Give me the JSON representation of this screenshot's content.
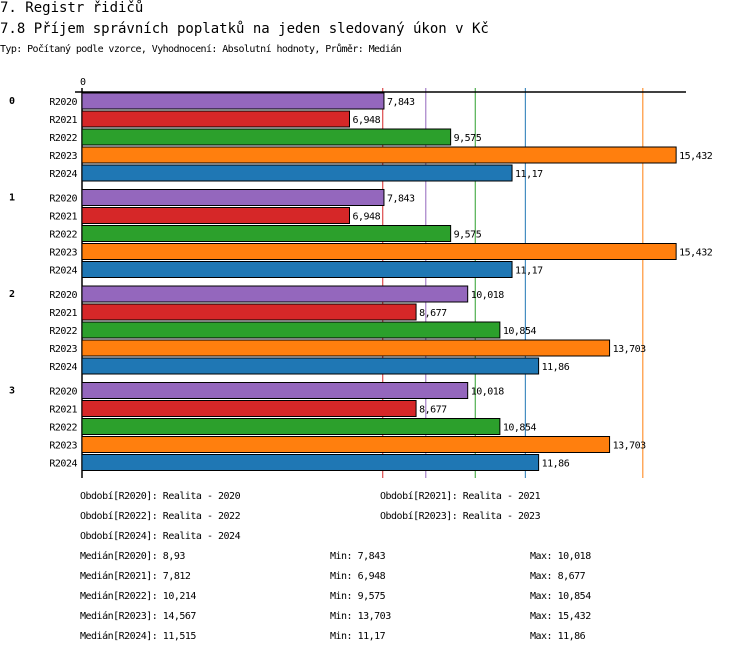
{
  "header": {
    "section": "7. Registr řidičů",
    "title": "7.8 Příjem správních poplatků na jeden sledovaný úkon v Kč",
    "subtitle": "Typ: Počítaný podle vzorce, Vyhodnocení: Absolutní hodnoty, Průměr: Medián"
  },
  "chart_data": {
    "type": "bar",
    "orientation": "horizontal",
    "title": "7.8 Příjem správních poplatků na jeden sledovaný úkon v Kč",
    "x_tick_labels": [
      "0"
    ],
    "groups": [
      "0",
      "1",
      "2",
      "3"
    ],
    "series": [
      {
        "name": "R2020",
        "color": "#9467bd",
        "values": [
          7.843,
          7.843,
          10.018,
          10.018
        ],
        "labels": [
          "7,843",
          "7,843",
          "10,018",
          "10,018"
        ],
        "median": 8.93
      },
      {
        "name": "R2021",
        "color": "#d62728",
        "values": [
          6.948,
          6.948,
          8.677,
          8.677
        ],
        "labels": [
          "6,948",
          "6,948",
          "8,677",
          "8,677"
        ],
        "median": 7.812
      },
      {
        "name": "R2022",
        "color": "#2ca02c",
        "values": [
          9.575,
          9.575,
          10.854,
          10.854
        ],
        "labels": [
          "9,575",
          "9,575",
          "10,854",
          "10,854"
        ],
        "median": 10.214
      },
      {
        "name": "R2023",
        "color": "#ff7f0e",
        "values": [
          15.432,
          15.432,
          13.703,
          13.703
        ],
        "labels": [
          "15,432",
          "15,432",
          "13,703",
          "13,703"
        ],
        "median": 14.567
      },
      {
        "name": "R2024",
        "color": "#1f77b4",
        "values": [
          11.17,
          11.17,
          11.86,
          11.86
        ],
        "labels": [
          "11,17",
          "11,17",
          "11,86",
          "11,86"
        ],
        "median": 11.515
      }
    ],
    "xlim": [
      0,
      15.8
    ]
  },
  "legend": {
    "periods": [
      "Období[R2020]: Realita - 2020",
      "Období[R2021]: Realita - 2021",
      "Období[R2022]: Realita - 2022",
      "Období[R2023]: Realita - 2023",
      "Období[R2024]: Realita - 2024"
    ],
    "stats": [
      {
        "median": "Medián[R2020]: 8,93",
        "min": "Min: 7,843",
        "max": "Max: 10,018"
      },
      {
        "median": "Medián[R2021]: 7,812",
        "min": "Min: 6,948",
        "max": "Max: 8,677"
      },
      {
        "median": "Medián[R2022]: 10,214",
        "min": "Min: 9,575",
        "max": "Max: 10,854"
      },
      {
        "median": "Medián[R2023]: 14,567",
        "min": "Min: 13,703",
        "max": "Max: 15,432"
      },
      {
        "median": "Medián[R2024]: 11,515",
        "min": "Min: 11,17",
        "max": "Max: 11,86"
      }
    ]
  }
}
